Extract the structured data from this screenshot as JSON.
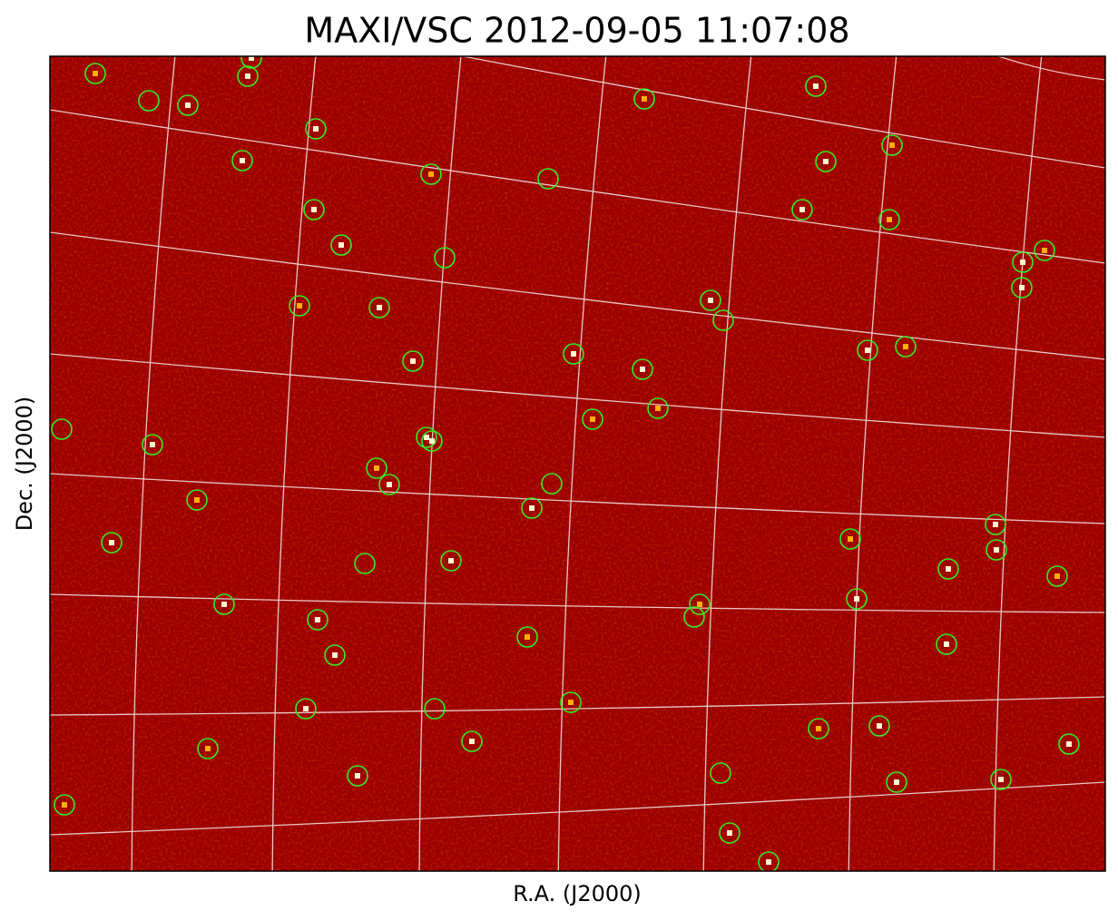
{
  "title": "MAXI/VSC 2012-09-05 11:07:08",
  "xlabel": "R.A. (J2000)",
  "ylabel": "Dec. (J2000)"
}
